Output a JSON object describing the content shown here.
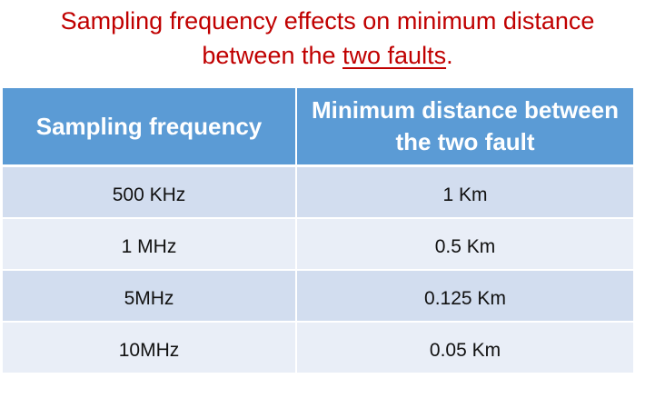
{
  "title": {
    "line1": "Sampling frequency effects on minimum distance",
    "line2_prefix": "between the ",
    "line2_underlined": "two faults",
    "line2_suffix": "."
  },
  "table": {
    "headers": [
      "Sampling frequency",
      "Minimum distance between the two fault"
    ],
    "rows": [
      {
        "frequency": "500 KHz",
        "distance": "1 Km"
      },
      {
        "frequency": "1 MHz",
        "distance": "0.5 Km"
      },
      {
        "frequency": "5MHz",
        "distance": "0.125 Km"
      },
      {
        "frequency": "10MHz",
        "distance": "0.05 Km"
      }
    ]
  },
  "colors": {
    "title": "#c00000",
    "header_bg": "#5b9bd5",
    "row_odd_bg": "#d2ddef",
    "row_even_bg": "#e9eef7"
  }
}
